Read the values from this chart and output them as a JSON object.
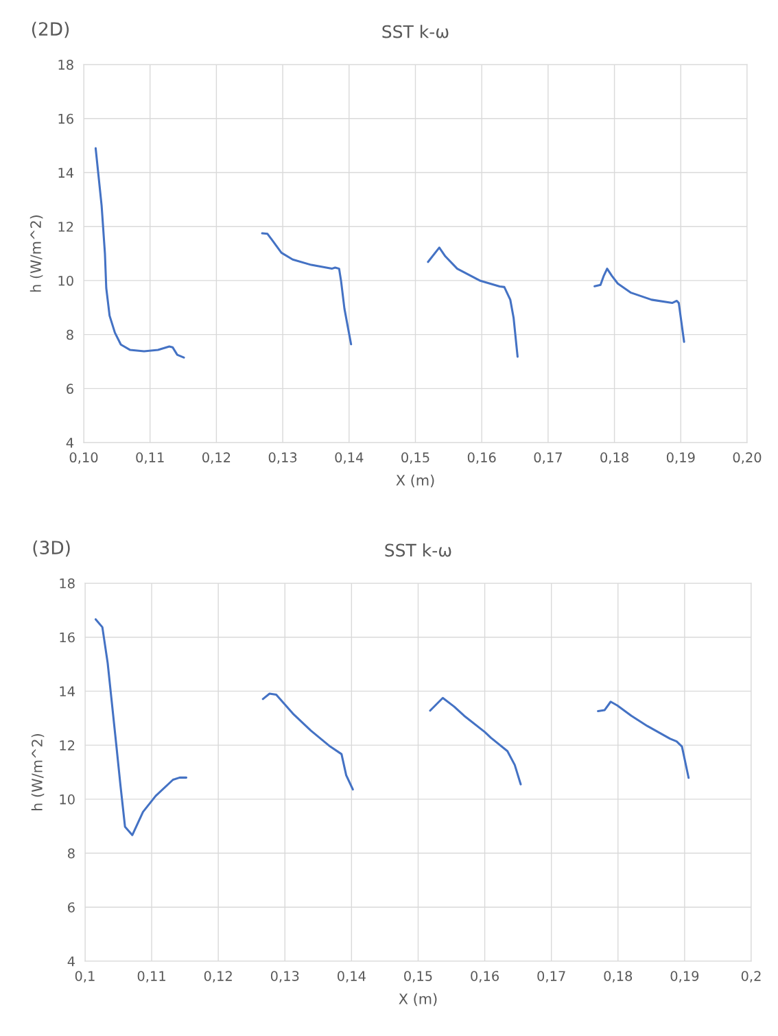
{
  "chart_data": [
    {
      "type": "line",
      "title": "SST k-ω",
      "xlabel": "X (m)",
      "ylabel": "h (W/m^2)",
      "annotations": [
        "(2D)"
      ],
      "xlim": [
        0.1,
        0.2
      ],
      "xticks": [
        {
          "value": 0.1,
          "label": "0,10"
        },
        {
          "value": 0.11,
          "label": "0,11"
        },
        {
          "value": 0.12,
          "label": "0,12"
        },
        {
          "value": 0.13,
          "label": "0,13"
        },
        {
          "value": 0.14,
          "label": "0,14"
        },
        {
          "value": 0.15,
          "label": "0,15"
        },
        {
          "value": 0.16,
          "label": "0,16"
        },
        {
          "value": 0.17,
          "label": "0,17"
        },
        {
          "value": 0.18,
          "label": "0,18"
        },
        {
          "value": 0.19,
          "label": "0,19"
        },
        {
          "value": 0.2,
          "label": "0,20"
        }
      ],
      "ylim": [
        4,
        18
      ],
      "yticks": [
        4,
        6,
        8,
        10,
        12,
        14,
        16,
        18
      ],
      "grid": true,
      "marker": "none",
      "line_style": "solid",
      "series": [
        {
          "color": "#4472c4",
          "x": [
            0.1018,
            0.1027,
            0.1032,
            0.1034,
            0.1039,
            0.1047,
            0.1056,
            0.107,
            0.1091,
            0.1112,
            0.1129,
            0.1134,
            0.1141,
            0.1151
          ],
          "values": [
            14.9,
            12.77,
            10.99,
            9.72,
            8.7,
            8.07,
            7.63,
            7.43,
            7.38,
            7.43,
            7.56,
            7.53,
            7.25,
            7.15
          ]
        },
        {
          "color": "#4472c4",
          "x": [
            0.1269,
            0.1277,
            0.1284,
            0.1298,
            0.1315,
            0.1343,
            0.1374,
            0.1379,
            0.1385,
            0.1388,
            0.1393,
            0.1403
          ],
          "values": [
            11.75,
            11.73,
            11.5,
            11.03,
            10.78,
            10.58,
            10.44,
            10.48,
            10.44,
            9.97,
            8.96,
            7.64
          ]
        },
        {
          "color": "#4472c4",
          "x": [
            0.1519,
            0.1536,
            0.1545,
            0.1563,
            0.1598,
            0.1627,
            0.1634,
            0.1643,
            0.1648,
            0.1654
          ],
          "values": [
            10.69,
            11.22,
            10.9,
            10.44,
            9.99,
            9.78,
            9.76,
            9.29,
            8.62,
            7.18
          ]
        },
        {
          "color": "#4472c4",
          "x": [
            0.177,
            0.1779,
            0.1784,
            0.1789,
            0.1796,
            0.1805,
            0.1825,
            0.1856,
            0.1887,
            0.1894,
            0.1897,
            0.1905
          ],
          "values": [
            9.79,
            9.84,
            10.18,
            10.44,
            10.18,
            9.89,
            9.55,
            9.29,
            9.17,
            9.25,
            9.17,
            7.73
          ]
        }
      ]
    },
    {
      "type": "line",
      "title": "SST k-ω",
      "xlabel": "X (m)",
      "ylabel": "h (W/m^2)",
      "annotations": [
        "(3D)"
      ],
      "xlim": [
        0.1,
        0.2
      ],
      "xticks": [
        {
          "value": 0.1,
          "label": "0,1"
        },
        {
          "value": 0.11,
          "label": "0,11"
        },
        {
          "value": 0.12,
          "label": "0,12"
        },
        {
          "value": 0.13,
          "label": "0,13"
        },
        {
          "value": 0.14,
          "label": "0,14"
        },
        {
          "value": 0.15,
          "label": "0,15"
        },
        {
          "value": 0.16,
          "label": "0,16"
        },
        {
          "value": 0.17,
          "label": "0,17"
        },
        {
          "value": 0.18,
          "label": "0,18"
        },
        {
          "value": 0.19,
          "label": "0,19"
        },
        {
          "value": 0.2,
          "label": "0,2"
        }
      ],
      "ylim": [
        4,
        18
      ],
      "yticks": [
        4,
        6,
        8,
        10,
        12,
        14,
        16,
        18
      ],
      "grid": true,
      "marker": "none",
      "line_style": "solid",
      "series": [
        {
          "color": "#4472c4",
          "x": [
            0.1016,
            0.1026,
            0.1034,
            0.1047,
            0.1053,
            0.106,
            0.1071,
            0.1087,
            0.1106,
            0.1132,
            0.1142,
            0.1152
          ],
          "values": [
            16.66,
            16.37,
            15.04,
            11.99,
            10.55,
            8.98,
            8.67,
            9.53,
            10.12,
            10.72,
            10.8,
            10.8
          ]
        },
        {
          "color": "#4472c4",
          "x": [
            0.1267,
            0.1277,
            0.1287,
            0.1312,
            0.1339,
            0.1368,
            0.1385,
            0.1392,
            0.1402
          ],
          "values": [
            13.71,
            13.91,
            13.87,
            13.17,
            12.54,
            11.95,
            11.67,
            10.89,
            10.36
          ]
        },
        {
          "color": "#4472c4",
          "x": [
            0.1518,
            0.1537,
            0.1554,
            0.1569,
            0.16,
            0.1609,
            0.1634,
            0.1645,
            0.1654
          ],
          "values": [
            13.28,
            13.75,
            13.43,
            13.09,
            12.49,
            12.28,
            11.78,
            11.27,
            10.55
          ]
        },
        {
          "color": "#4472c4",
          "x": [
            0.177,
            0.178,
            0.1789,
            0.1799,
            0.182,
            0.1844,
            0.1878,
            0.1888,
            0.1896,
            0.1906
          ],
          "values": [
            13.26,
            13.3,
            13.61,
            13.47,
            13.09,
            12.71,
            12.24,
            12.14,
            11.95,
            10.79
          ]
        }
      ]
    }
  ]
}
